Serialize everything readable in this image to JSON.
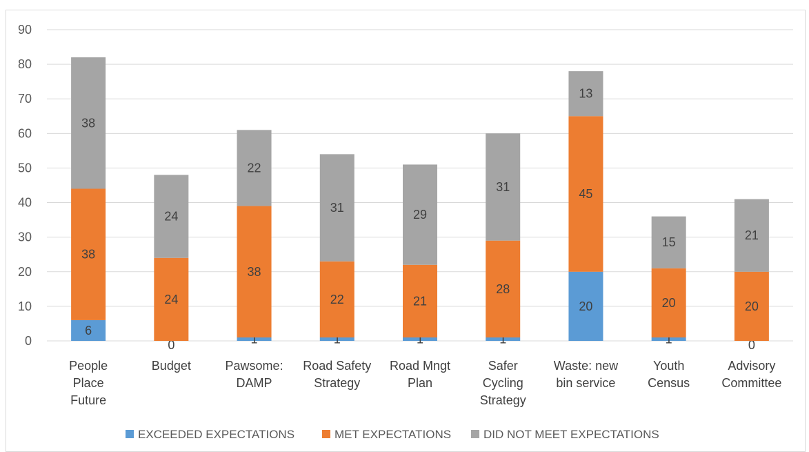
{
  "chart_data": {
    "type": "bar",
    "stacked": true,
    "title": "",
    "xlabel": "",
    "ylabel": "",
    "ylim": [
      0,
      90
    ],
    "y_ticks": [
      0,
      10,
      20,
      30,
      40,
      50,
      60,
      70,
      80,
      90
    ],
    "grid": true,
    "legend_position": "bottom",
    "categories": [
      [
        "People",
        "Place",
        "Future"
      ],
      [
        "Budget"
      ],
      [
        "Pawsome:",
        "DAMP"
      ],
      [
        "Road Safety",
        "Strategy"
      ],
      [
        "Road Mngt",
        "Plan"
      ],
      [
        "Safer",
        "Cycling",
        "Strategy"
      ],
      [
        "Waste: new",
        "bin service"
      ],
      [
        "Youth",
        "Census"
      ],
      [
        "Advisory",
        "Committee"
      ]
    ],
    "series": [
      {
        "name": "EXCEEDED EXPECTATIONS",
        "color": "#5b9bd5",
        "values": [
          6,
          0,
          1,
          1,
          1,
          1,
          20,
          1,
          0
        ]
      },
      {
        "name": "MET EXPECTATIONS",
        "color": "#ed7d31",
        "values": [
          38,
          24,
          38,
          22,
          21,
          28,
          45,
          20,
          20
        ]
      },
      {
        "name": "DID NOT MEET EXPECTATIONS",
        "color": "#a5a5a5",
        "values": [
          38,
          24,
          22,
          31,
          29,
          31,
          13,
          15,
          21
        ]
      }
    ]
  }
}
